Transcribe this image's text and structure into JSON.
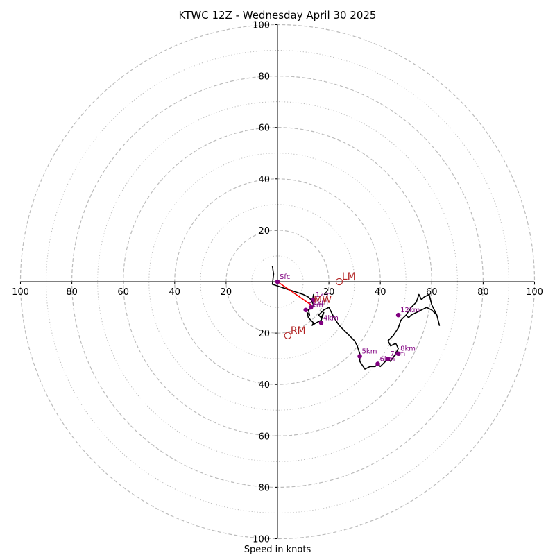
{
  "chart_data": {
    "type": "hodograph",
    "title": "KTWC 12Z - Wednesday April 30 2025",
    "xlabel": "Speed in knots",
    "ylabel": "",
    "xlim": [
      -100,
      100
    ],
    "ylim": [
      -100,
      100
    ],
    "tick_values": [
      100,
      80,
      60,
      40,
      20
    ],
    "x_tick_labels": [
      "100",
      "80",
      "60",
      "40",
      "20",
      "20",
      "40",
      "60",
      "80",
      "100"
    ],
    "y_tick_labels_top": [
      "100",
      "80",
      "60",
      "40",
      "20"
    ],
    "y_tick_labels_bottom": [
      "20",
      "40",
      "60",
      "80",
      "100"
    ],
    "dashed_rings": [
      20,
      40,
      60,
      80,
      100
    ],
    "dotted_rings": [
      10,
      30,
      50,
      70,
      90
    ],
    "colors": {
      "trace": "#000000",
      "height_marker": "#800080",
      "storm_motion": "#b22222",
      "mean_wind_vector": "#ff0000",
      "rings": "#bbbbbb"
    },
    "trace": {
      "u": [
        -2,
        -1.5,
        -2,
        1,
        4,
        7,
        10,
        12,
        13,
        13.5,
        14,
        14,
        13.5,
        14,
        13.5,
        12,
        12.5,
        11.5,
        12,
        13,
        14,
        13.5,
        15,
        17,
        18,
        17,
        16,
        18,
        20,
        22,
        24,
        26,
        28,
        30,
        31,
        32,
        32,
        34,
        36,
        38,
        39,
        40,
        42,
        43,
        44,
        46,
        47,
        46,
        44,
        43,
        45,
        47,
        48,
        50,
        52,
        54,
        55,
        56,
        57,
        59,
        60,
        61,
        62,
        63,
        62,
        60,
        58,
        56,
        54,
        52,
        51,
        50
      ],
      "v": [
        6,
        3,
        -1,
        -2,
        -3,
        -4,
        -5,
        -6,
        -7,
        -8,
        -5,
        -7,
        -8,
        -9,
        -10,
        -11,
        -13,
        -12,
        -14,
        -15,
        -16,
        -17,
        -16,
        -15,
        -12,
        -14,
        -13,
        -11,
        -10,
        -14,
        -17,
        -19,
        -21,
        -23,
        -25,
        -28,
        -31,
        -34,
        -33,
        -33,
        -32,
        -33,
        -31,
        -30,
        -31,
        -28,
        -26,
        -24,
        -25,
        -23,
        -21,
        -18,
        -15,
        -13,
        -10,
        -8,
        -5,
        -7,
        -6,
        -5,
        -9,
        -11,
        -13,
        -17,
        -13,
        -11,
        -10,
        -11,
        -12,
        -13,
        -14,
        -13
      ]
    },
    "heights": [
      {
        "label": "Sfc",
        "u": 0,
        "v": 0
      },
      {
        "label": "1km",
        "u": 14,
        "v": -7
      },
      {
        "label": "2km",
        "u": 13,
        "v": -10
      },
      {
        "label": "3km",
        "u": 11,
        "v": -11
      },
      {
        "label": "4km",
        "u": 17,
        "v": -16
      },
      {
        "label": "5km",
        "u": 32,
        "v": -29
      },
      {
        "label": "6km",
        "u": 39,
        "v": -32
      },
      {
        "label": "7km",
        "u": 43,
        "v": -30
      },
      {
        "label": "8km",
        "u": 47,
        "v": -28
      },
      {
        "label": "12km",
        "u": 47,
        "v": -13
      }
    ],
    "storm_motions": [
      {
        "label": "LM",
        "u": 24,
        "v": 0
      },
      {
        "label": "RM",
        "u": 4,
        "v": -21
      },
      {
        "label": "MW",
        "u": 13,
        "v": -9
      }
    ]
  }
}
